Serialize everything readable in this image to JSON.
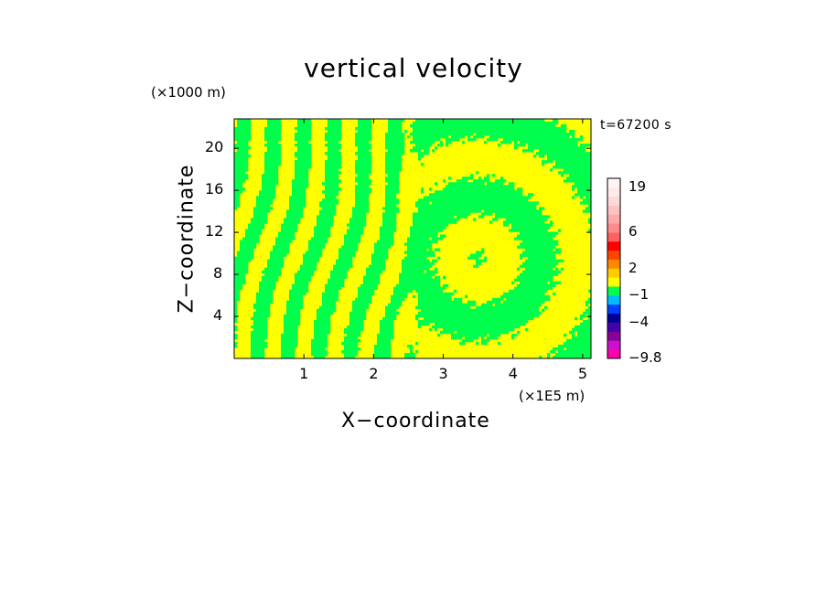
{
  "chart_data": {
    "type": "heatmap",
    "title": "vertical velocity",
    "xlabel": "X−coordinate",
    "ylabel": "Z−coordinate",
    "x_unit": "(×1E5 m)",
    "y_unit": "(×1000 m)",
    "time_label": "t=67200 s",
    "xlim": [
      0,
      5.12
    ],
    "ylim": [
      0,
      22.8
    ],
    "x_ticks": [
      "1",
      "2",
      "3",
      "4",
      "5"
    ],
    "x_tick_values": [
      1,
      2,
      3,
      4,
      5
    ],
    "y_ticks": [
      "20",
      "16",
      "12",
      "8",
      "4"
    ],
    "y_tick_values": [
      20,
      16,
      12,
      8,
      4
    ],
    "grid": false,
    "field_description_colors": {
      "dominant_positive": "#ffff00",
      "dominant_negative": "#00ff4d"
    },
    "colorbar": {
      "boundaries": [
        -9.8,
        -8,
        -6,
        -5,
        -4,
        -3,
        -2,
        -1,
        0,
        1,
        2,
        3,
        4,
        5,
        6,
        8,
        10,
        13,
        16,
        19,
        22
      ],
      "colors": [
        "#ff00aa",
        "#cc11cc",
        "#880099",
        "#4400aa",
        "#000099",
        "#0040ff",
        "#00bbff",
        "#00ff4d",
        "#ffff00",
        "#ffcc00",
        "#ff8800",
        "#ff4400",
        "#ff0000",
        "#ff6060",
        "#ff8a8a",
        "#ffaaaa",
        "#ffc2c2",
        "#ffd8d8",
        "#ffeaea",
        "#fff5f5"
      ],
      "labels": [
        "19",
        "6",
        "2",
        "−1",
        "−4",
        "−9.8"
      ],
      "label_values": [
        19,
        6,
        2,
        -1,
        -4,
        -9.8
      ]
    }
  }
}
